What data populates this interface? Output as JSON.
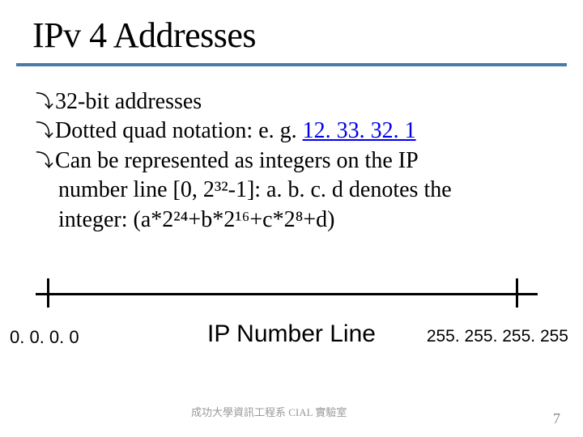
{
  "title": "IPv 4 Addresses",
  "bullets": {
    "b1": "32-bit addresses",
    "b2_pre": "Dotted quad notation: e. g. ",
    "b2_link": "12. 33. 32. 1",
    "b3": "Can be represented as integers on the IP",
    "b3_l2": "number line [0, 2³²-1]: a. b. c. d denotes the",
    "b3_l3": "integer: (a*2²⁴+b*2¹⁶+c*2⁸+d)"
  },
  "numberline": {
    "left": "0. 0. 0. 0",
    "center": "IP Number Line",
    "right": "255. 255. 255. 255"
  },
  "footer": {
    "left": "成功大學資訊工程系    CIAL 實驗室",
    "page": "7"
  },
  "style": {
    "accent": "#4a7ba6",
    "link_color": "#0000ee",
    "footer_color": "#999999"
  }
}
